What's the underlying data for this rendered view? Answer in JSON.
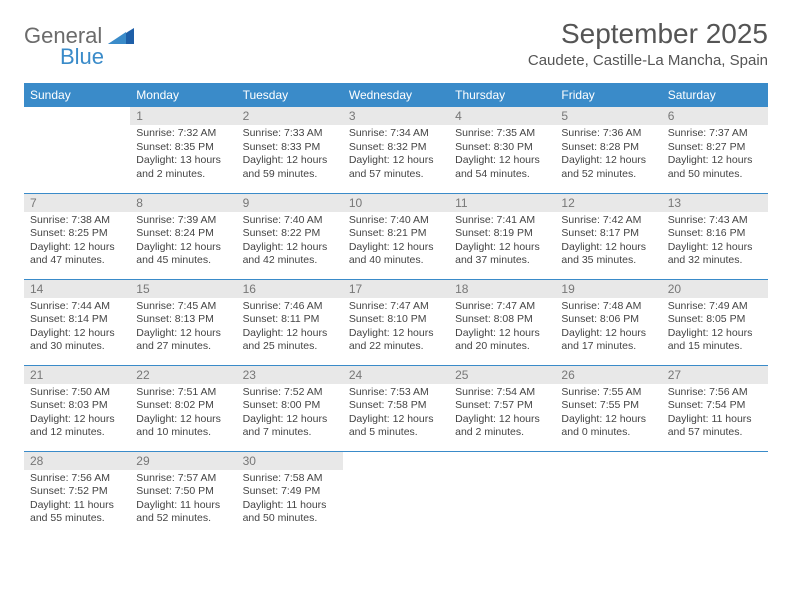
{
  "brand": {
    "line1": "General",
    "line2": "Blue"
  },
  "title": "September 2025",
  "location": "Caudete, Castille-La Mancha, Spain",
  "colors": {
    "header_bg": "#3a8bc9",
    "header_text": "#ffffff",
    "daynum_bg": "#e8e8e8",
    "daynum_text": "#777777",
    "border": "#3a8bc9",
    "body_text": "#444444",
    "title_text": "#555555",
    "logo_gray": "#6b6b6b",
    "logo_blue": "#3a8bc9",
    "background": "#ffffff"
  },
  "weekdays": [
    "Sunday",
    "Monday",
    "Tuesday",
    "Wednesday",
    "Thursday",
    "Friday",
    "Saturday"
  ],
  "weeks": [
    [
      null,
      {
        "n": "1",
        "sr": "Sunrise: 7:32 AM",
        "ss": "Sunset: 8:35 PM",
        "dl": "Daylight: 13 hours and 2 minutes."
      },
      {
        "n": "2",
        "sr": "Sunrise: 7:33 AM",
        "ss": "Sunset: 8:33 PM",
        "dl": "Daylight: 12 hours and 59 minutes."
      },
      {
        "n": "3",
        "sr": "Sunrise: 7:34 AM",
        "ss": "Sunset: 8:32 PM",
        "dl": "Daylight: 12 hours and 57 minutes."
      },
      {
        "n": "4",
        "sr": "Sunrise: 7:35 AM",
        "ss": "Sunset: 8:30 PM",
        "dl": "Daylight: 12 hours and 54 minutes."
      },
      {
        "n": "5",
        "sr": "Sunrise: 7:36 AM",
        "ss": "Sunset: 8:28 PM",
        "dl": "Daylight: 12 hours and 52 minutes."
      },
      {
        "n": "6",
        "sr": "Sunrise: 7:37 AM",
        "ss": "Sunset: 8:27 PM",
        "dl": "Daylight: 12 hours and 50 minutes."
      }
    ],
    [
      {
        "n": "7",
        "sr": "Sunrise: 7:38 AM",
        "ss": "Sunset: 8:25 PM",
        "dl": "Daylight: 12 hours and 47 minutes."
      },
      {
        "n": "8",
        "sr": "Sunrise: 7:39 AM",
        "ss": "Sunset: 8:24 PM",
        "dl": "Daylight: 12 hours and 45 minutes."
      },
      {
        "n": "9",
        "sr": "Sunrise: 7:40 AM",
        "ss": "Sunset: 8:22 PM",
        "dl": "Daylight: 12 hours and 42 minutes."
      },
      {
        "n": "10",
        "sr": "Sunrise: 7:40 AM",
        "ss": "Sunset: 8:21 PM",
        "dl": "Daylight: 12 hours and 40 minutes."
      },
      {
        "n": "11",
        "sr": "Sunrise: 7:41 AM",
        "ss": "Sunset: 8:19 PM",
        "dl": "Daylight: 12 hours and 37 minutes."
      },
      {
        "n": "12",
        "sr": "Sunrise: 7:42 AM",
        "ss": "Sunset: 8:17 PM",
        "dl": "Daylight: 12 hours and 35 minutes."
      },
      {
        "n": "13",
        "sr": "Sunrise: 7:43 AM",
        "ss": "Sunset: 8:16 PM",
        "dl": "Daylight: 12 hours and 32 minutes."
      }
    ],
    [
      {
        "n": "14",
        "sr": "Sunrise: 7:44 AM",
        "ss": "Sunset: 8:14 PM",
        "dl": "Daylight: 12 hours and 30 minutes."
      },
      {
        "n": "15",
        "sr": "Sunrise: 7:45 AM",
        "ss": "Sunset: 8:13 PM",
        "dl": "Daylight: 12 hours and 27 minutes."
      },
      {
        "n": "16",
        "sr": "Sunrise: 7:46 AM",
        "ss": "Sunset: 8:11 PM",
        "dl": "Daylight: 12 hours and 25 minutes."
      },
      {
        "n": "17",
        "sr": "Sunrise: 7:47 AM",
        "ss": "Sunset: 8:10 PM",
        "dl": "Daylight: 12 hours and 22 minutes."
      },
      {
        "n": "18",
        "sr": "Sunrise: 7:47 AM",
        "ss": "Sunset: 8:08 PM",
        "dl": "Daylight: 12 hours and 20 minutes."
      },
      {
        "n": "19",
        "sr": "Sunrise: 7:48 AM",
        "ss": "Sunset: 8:06 PM",
        "dl": "Daylight: 12 hours and 17 minutes."
      },
      {
        "n": "20",
        "sr": "Sunrise: 7:49 AM",
        "ss": "Sunset: 8:05 PM",
        "dl": "Daylight: 12 hours and 15 minutes."
      }
    ],
    [
      {
        "n": "21",
        "sr": "Sunrise: 7:50 AM",
        "ss": "Sunset: 8:03 PM",
        "dl": "Daylight: 12 hours and 12 minutes."
      },
      {
        "n": "22",
        "sr": "Sunrise: 7:51 AM",
        "ss": "Sunset: 8:02 PM",
        "dl": "Daylight: 12 hours and 10 minutes."
      },
      {
        "n": "23",
        "sr": "Sunrise: 7:52 AM",
        "ss": "Sunset: 8:00 PM",
        "dl": "Daylight: 12 hours and 7 minutes."
      },
      {
        "n": "24",
        "sr": "Sunrise: 7:53 AM",
        "ss": "Sunset: 7:58 PM",
        "dl": "Daylight: 12 hours and 5 minutes."
      },
      {
        "n": "25",
        "sr": "Sunrise: 7:54 AM",
        "ss": "Sunset: 7:57 PM",
        "dl": "Daylight: 12 hours and 2 minutes."
      },
      {
        "n": "26",
        "sr": "Sunrise: 7:55 AM",
        "ss": "Sunset: 7:55 PM",
        "dl": "Daylight: 12 hours and 0 minutes."
      },
      {
        "n": "27",
        "sr": "Sunrise: 7:56 AM",
        "ss": "Sunset: 7:54 PM",
        "dl": "Daylight: 11 hours and 57 minutes."
      }
    ],
    [
      {
        "n": "28",
        "sr": "Sunrise: 7:56 AM",
        "ss": "Sunset: 7:52 PM",
        "dl": "Daylight: 11 hours and 55 minutes."
      },
      {
        "n": "29",
        "sr": "Sunrise: 7:57 AM",
        "ss": "Sunset: 7:50 PM",
        "dl": "Daylight: 11 hours and 52 minutes."
      },
      {
        "n": "30",
        "sr": "Sunrise: 7:58 AM",
        "ss": "Sunset: 7:49 PM",
        "dl": "Daylight: 11 hours and 50 minutes."
      },
      null,
      null,
      null,
      null
    ]
  ]
}
